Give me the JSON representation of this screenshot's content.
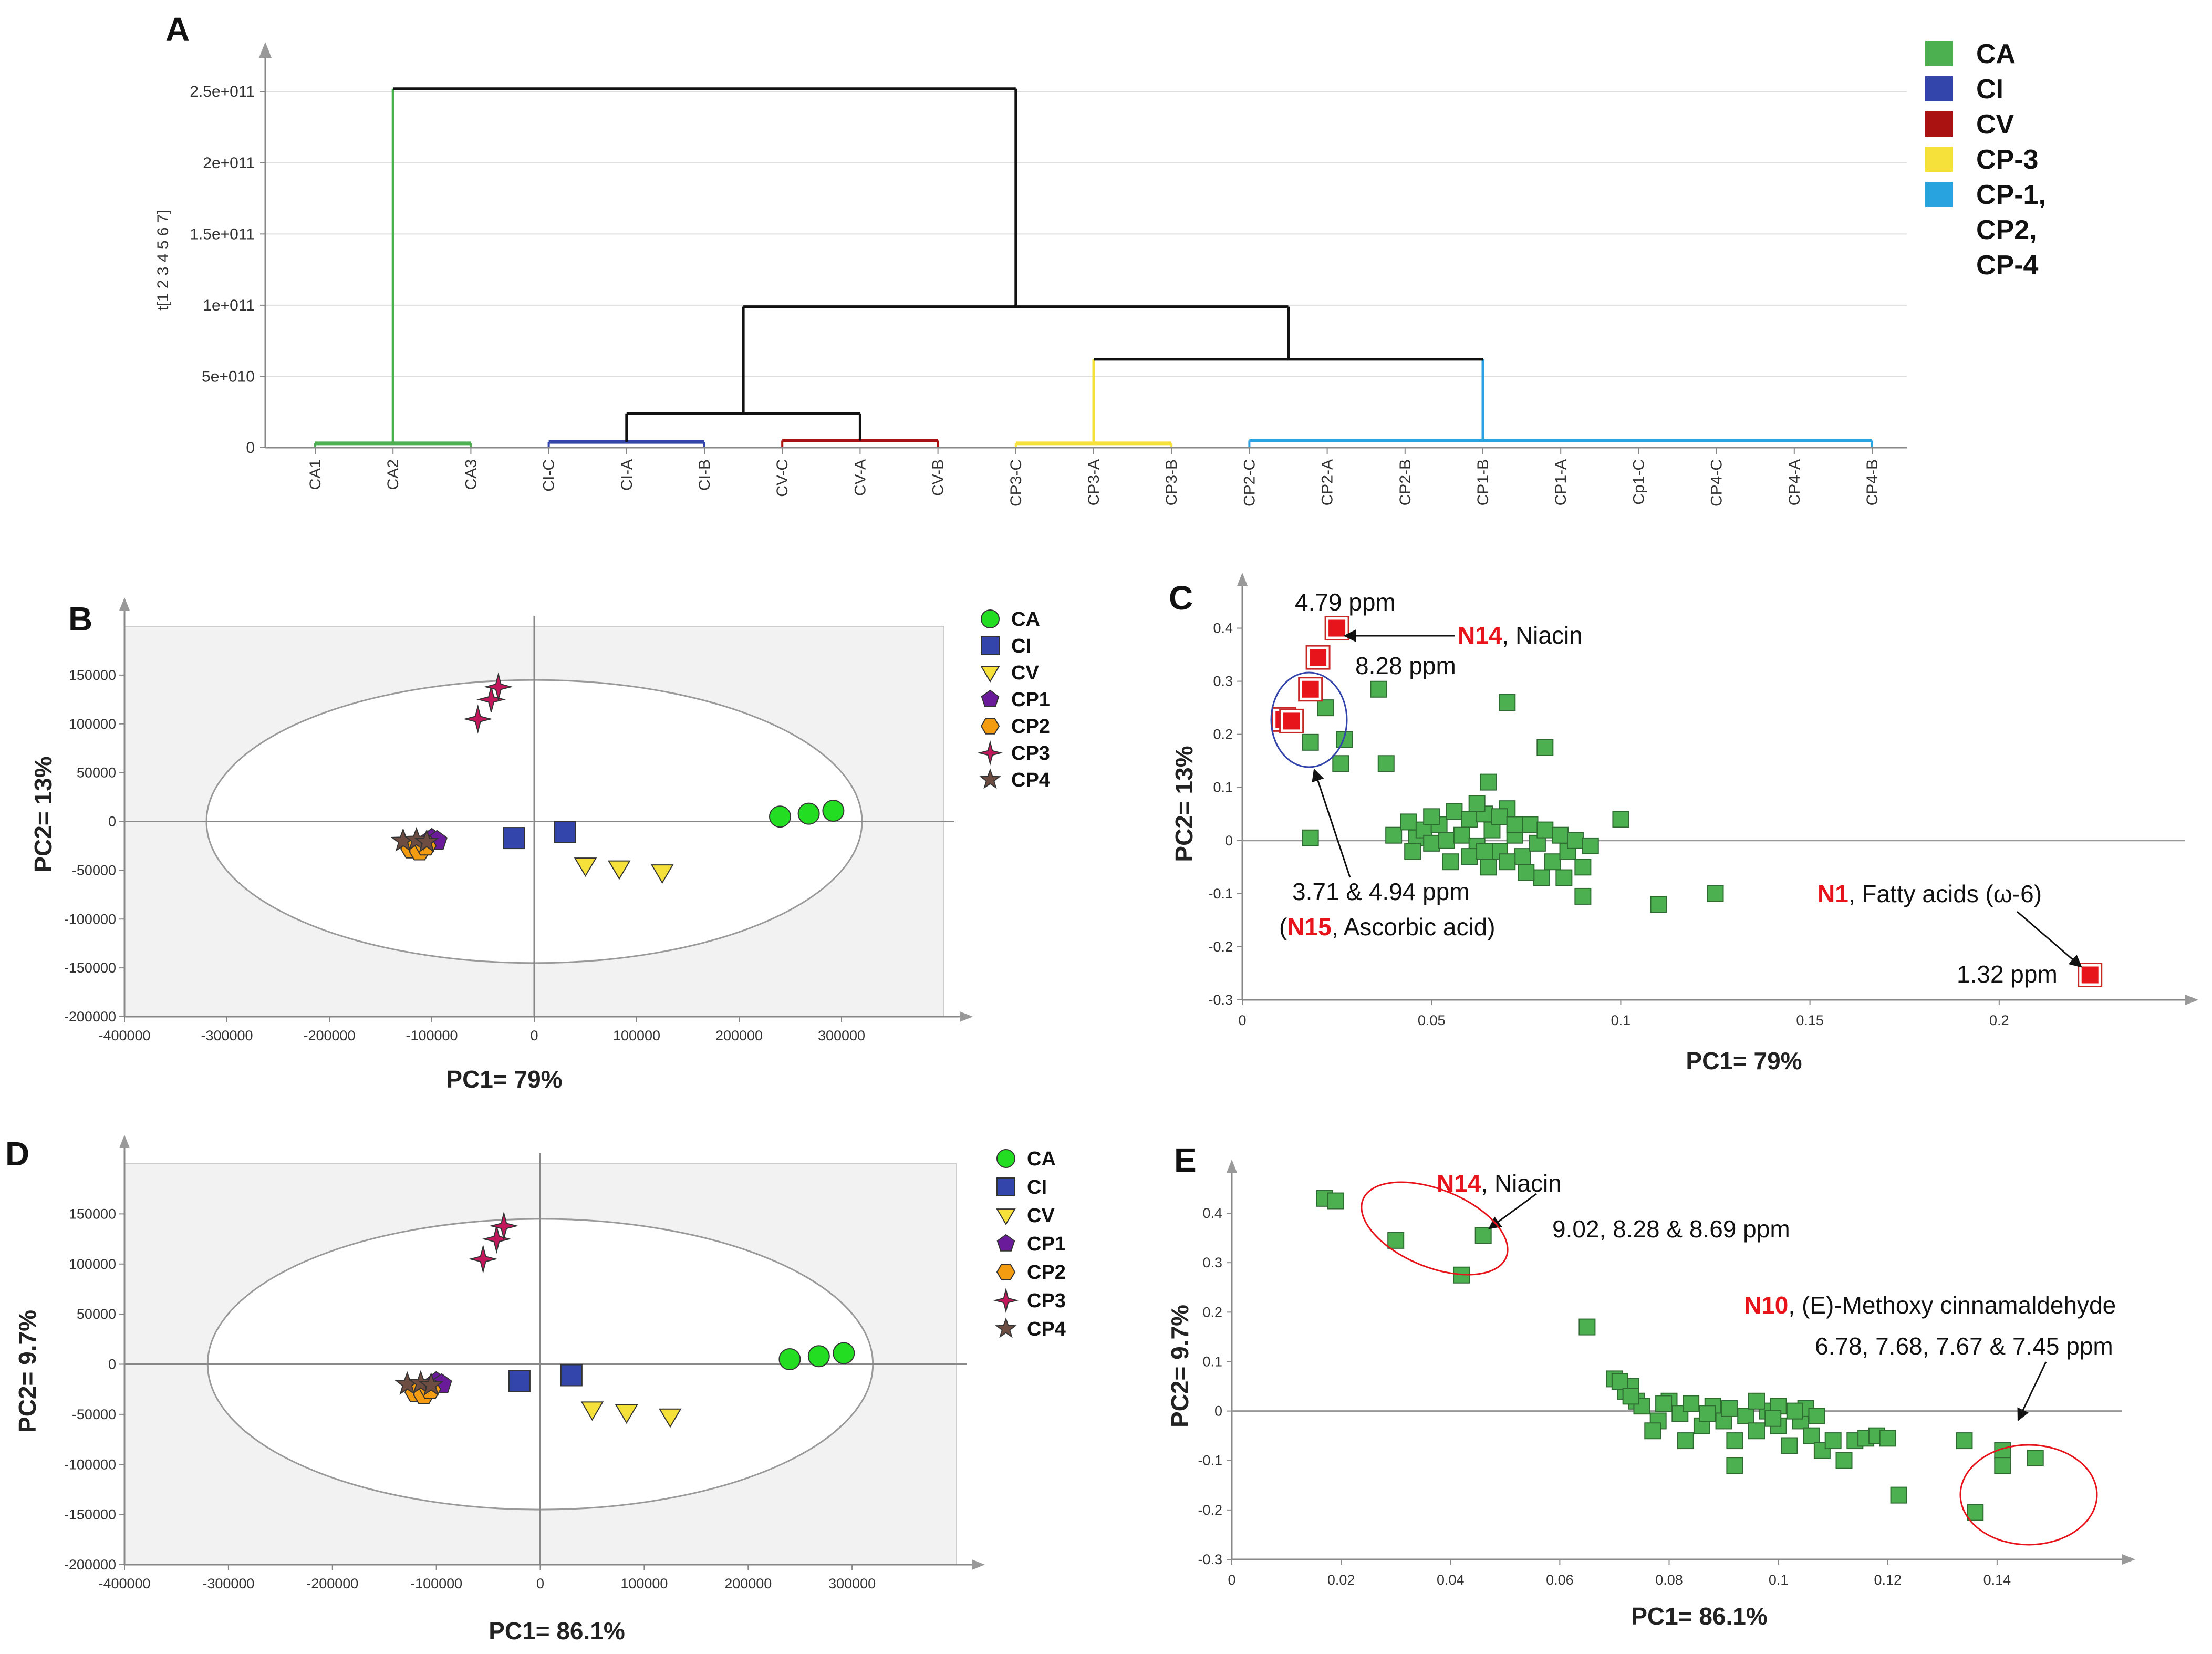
{
  "colors": {
    "green_marker": "#4caf50",
    "green_bright": "#22dd22",
    "blue": "#3344aa",
    "yellow": "#f5e13a",
    "purple": "#6a1b9a",
    "orange": "#f39c12",
    "magenta": "#c2185b",
    "brown": "#6d4c41",
    "red": "#e8141b"
  },
  "chart_data": [
    {
      "panel": "A",
      "type": "dendrogram",
      "ylabel": "t[1 2 3 4 5 6 7]",
      "yticks": [
        "0",
        "5e+010",
        "1e+011",
        "1.5e+011",
        "2e+011",
        "2.5e+011"
      ],
      "yvalues": [
        0,
        50000000000.0,
        100000000000.0,
        150000000000.0,
        200000000000.0,
        250000000000.0
      ],
      "ylim": [
        0,
        270000000000.0
      ],
      "leaves": [
        "CA1",
        "CA2",
        "CA3",
        "CI-C",
        "CI-A",
        "CI-B",
        "CV-C",
        "CV-A",
        "CV-B",
        "CP3-C",
        "CP3-A",
        "CP3-B",
        "CP2-C",
        "CP2-A",
        "CP2-B",
        "CP1-B",
        "CP1-A",
        "Cp1-C",
        "CP4-C",
        "CP4-A",
        "CP4-B"
      ],
      "merges": [
        {
          "left": 0,
          "right": 2,
          "height": 3000000000.0,
          "color": "#4caf50"
        },
        {
          "left": 3,
          "right": 5,
          "height": 4000000000.0,
          "color": "#3344aa"
        },
        {
          "left": 6,
          "right": 8,
          "height": 5000000000.0,
          "color": "#aa1111"
        },
        {
          "left": 9,
          "right": 11,
          "height": 3000000000.0,
          "color": "#f5e13a"
        },
        {
          "left": 12,
          "right": 20,
          "height": 5000000000.0,
          "color": "#29a3e0"
        },
        {
          "left": 1,
          "right": 1,
          "height": 252000000000.0,
          "color": "#4caf50"
        },
        {
          "left": 4,
          "right": 7,
          "height": 24000000000.0,
          "color": "#111111"
        },
        {
          "left": 10,
          "right": 15,
          "height": 62000000000.0,
          "color": "#111111"
        },
        {
          "left": 5.5,
          "right": 12.5,
          "height": 99000000000.0,
          "color": "#111111"
        },
        {
          "left": 1,
          "right": 9,
          "height": 252000000000.0,
          "color": "#111111"
        }
      ],
      "legend": [
        {
          "label": "CA",
          "color": "#4caf50"
        },
        {
          "label": "CI",
          "color": "#3344aa"
        },
        {
          "label": "CV",
          "color": "#aa1111"
        },
        {
          "label": "CP-3",
          "color": "#f5e13a"
        },
        {
          "label": "CP-1,",
          "color": "#29a3e0"
        },
        {
          "label": "CP2,",
          "color": ""
        },
        {
          "label": "CP-4",
          "color": ""
        }
      ]
    },
    {
      "panel": "B",
      "type": "scatter",
      "xlabel": "PC1= 79%",
      "ylabel": "PC2= 13%",
      "xlim": [
        -400000,
        400000
      ],
      "ylim": [
        -200000,
        200000
      ],
      "xticks": [
        -400000,
        -300000,
        -200000,
        -100000,
        0,
        100000,
        200000,
        300000
      ],
      "yticks": [
        -200000,
        -150000,
        -100000,
        -50000,
        0,
        50000,
        100000,
        150000
      ],
      "ellipse": {
        "rx": 320000,
        "ry": 145000
      },
      "series": [
        {
          "name": "CA",
          "marker": "circle",
          "color": "#22dd22",
          "points": [
            [
              240000,
              5000
            ],
            [
              268000,
              8000
            ],
            [
              292000,
              11000
            ]
          ]
        },
        {
          "name": "CI",
          "marker": "square",
          "color": "#3344aa",
          "points": [
            [
              -20000,
              -17000
            ],
            [
              30000,
              -11000
            ]
          ]
        },
        {
          "name": "CV",
          "marker": "tri",
          "color": "#f5e13a",
          "points": [
            [
              50000,
              -45000
            ],
            [
              83000,
              -48000
            ],
            [
              125000,
              -52000
            ]
          ]
        },
        {
          "name": "CP1",
          "marker": "pentagon",
          "color": "#6a1b9a",
          "points": [
            [
              -100000,
              -18000
            ],
            [
              -95000,
              -20000
            ]
          ]
        },
        {
          "name": "CP2",
          "marker": "hexagon",
          "color": "#f39c12",
          "points": [
            [
              -120000,
              -28000
            ],
            [
              -112000,
              -30000
            ],
            [
              -106000,
              -25000
            ]
          ]
        },
        {
          "name": "CP3",
          "marker": "star4",
          "color": "#c2185b",
          "points": [
            [
              -55000,
              105000
            ],
            [
              -42000,
              125000
            ],
            [
              -35000,
              138000
            ]
          ]
        },
        {
          "name": "CP4",
          "marker": "star5",
          "color": "#6d4c41",
          "points": [
            [
              -128000,
              -20000
            ],
            [
              -115000,
              -19000
            ],
            [
              -105000,
              -21000
            ]
          ]
        }
      ]
    },
    {
      "panel": "C",
      "type": "scatter",
      "xlabel": "PC1= 79%",
      "ylabel": "PC2= 13%",
      "xlim": [
        0,
        0.245
      ],
      "ylim": [
        -0.3,
        0.45
      ],
      "xticks": [
        0,
        0.05,
        0.1,
        0.15,
        0.2
      ],
      "xtick_labels": [
        "0",
        "0.05",
        "0.1",
        "0.15",
        "0.2"
      ],
      "yticks": [
        -0.3,
        -0.2,
        -0.1,
        0,
        0.1,
        0.2,
        0.3,
        0.4
      ],
      "ytick_labels": [
        "-0.3",
        "-0.2",
        "-0.1",
        "0",
        "0.1",
        "0.2",
        "0.3",
        "0.4"
      ],
      "highlight_points": [
        [
          0.025,
          0.4
        ],
        [
          0.02,
          0.345
        ],
        [
          0.018,
          0.285
        ],
        [
          0.011,
          0.228
        ],
        [
          0.013,
          0.225
        ],
        [
          0.224,
          -0.253
        ]
      ],
      "green_points": [
        [
          0.018,
          0.005
        ],
        [
          0.018,
          0.185
        ],
        [
          0.022,
          0.25
        ],
        [
          0.027,
          0.19
        ],
        [
          0.026,
          0.145
        ],
        [
          0.036,
          0.285
        ],
        [
          0.038,
          0.145
        ],
        [
          0.07,
          0.26
        ],
        [
          0.08,
          0.175
        ],
        [
          0.065,
          0.11
        ],
        [
          0.1,
          0.04
        ],
        [
          0.11,
          -0.12
        ],
        [
          0.125,
          -0.1
        ],
        [
          0.09,
          -0.105
        ],
        [
          0.079,
          -0.07
        ],
        [
          0.04,
          0.01
        ],
        [
          0.044,
          0.035
        ],
        [
          0.046,
          0.005
        ],
        [
          0.048,
          0.02
        ],
        [
          0.05,
          -0.005
        ],
        [
          0.052,
          0.03
        ],
        [
          0.054,
          0.0
        ],
        [
          0.056,
          0.055
        ],
        [
          0.058,
          0.01
        ],
        [
          0.06,
          0.04
        ],
        [
          0.062,
          -0.01
        ],
        [
          0.064,
          0.05
        ],
        [
          0.066,
          0.02
        ],
        [
          0.068,
          -0.02
        ],
        [
          0.07,
          0.06
        ],
        [
          0.072,
          0.01
        ],
        [
          0.074,
          -0.03
        ],
        [
          0.076,
          0.03
        ],
        [
          0.078,
          -0.005
        ],
        [
          0.08,
          0.02
        ],
        [
          0.082,
          -0.04
        ],
        [
          0.084,
          0.01
        ],
        [
          0.086,
          -0.02
        ],
        [
          0.088,
          0.0
        ],
        [
          0.09,
          -0.05
        ],
        [
          0.092,
          -0.01
        ],
        [
          0.055,
          -0.04
        ],
        [
          0.06,
          -0.03
        ],
        [
          0.065,
          -0.05
        ],
        [
          0.07,
          -0.04
        ],
        [
          0.075,
          -0.06
        ],
        [
          0.085,
          -0.07
        ],
        [
          0.05,
          0.045
        ],
        [
          0.045,
          -0.02
        ],
        [
          0.062,
          0.07
        ],
        [
          0.068,
          0.045
        ],
        [
          0.072,
          0.03
        ],
        [
          0.064,
          -0.02
        ]
      ],
      "annotations": [
        {
          "text": "4.79 ppm"
        },
        {
          "bold_red": "N14",
          "text": ", Niacin"
        },
        {
          "text": "8.28 ppm"
        },
        {
          "text": "3.71 & 4.94 ppm"
        },
        {
          "prefix": "(",
          "bold_red": "N15",
          "text": ", Ascorbic acid)"
        },
        {
          "bold_red": "N1",
          "text": ", Fatty acids (ω-6)"
        },
        {
          "text": "1.32 ppm"
        }
      ]
    },
    {
      "panel": "D",
      "type": "scatter",
      "xlabel": "PC1= 86.1%",
      "ylabel": "PC2= 9.7%",
      "xlim": [
        -400000,
        400000
      ],
      "ylim": [
        -200000,
        200000
      ],
      "xticks": [
        -400000,
        -300000,
        -200000,
        -100000,
        0,
        100000,
        200000,
        300000
      ],
      "yticks": [
        -200000,
        -150000,
        -100000,
        -50000,
        0,
        50000,
        100000,
        150000
      ],
      "ellipse": {
        "rx": 320000,
        "ry": 145000
      },
      "series": [
        {
          "name": "CA",
          "marker": "circle",
          "color": "#22dd22",
          "points": [
            [
              240000,
              5000
            ],
            [
              268000,
              8000
            ],
            [
              292000,
              11000
            ]
          ]
        },
        {
          "name": "CI",
          "marker": "square",
          "color": "#3344aa",
          "points": [
            [
              -20000,
              -17000
            ],
            [
              30000,
              -11000
            ]
          ]
        },
        {
          "name": "CV",
          "marker": "tri",
          "color": "#f5e13a",
          "points": [
            [
              50000,
              -45000
            ],
            [
              83000,
              -48000
            ],
            [
              125000,
              -52000
            ]
          ]
        },
        {
          "name": "CP1",
          "marker": "pentagon",
          "color": "#6a1b9a",
          "points": [
            [
              -100000,
              -18000
            ],
            [
              -95000,
              -20000
            ]
          ]
        },
        {
          "name": "CP2",
          "marker": "hexagon",
          "color": "#f39c12",
          "points": [
            [
              -120000,
              -28000
            ],
            [
              -112000,
              -30000
            ],
            [
              -106000,
              -25000
            ]
          ]
        },
        {
          "name": "CP3",
          "marker": "star4",
          "color": "#c2185b",
          "points": [
            [
              -55000,
              105000
            ],
            [
              -42000,
              125000
            ],
            [
              -35000,
              138000
            ]
          ]
        },
        {
          "name": "CP4",
          "marker": "star5",
          "color": "#6d4c41",
          "points": [
            [
              -128000,
              -20000
            ],
            [
              -115000,
              -19000
            ],
            [
              -105000,
              -21000
            ]
          ]
        }
      ]
    },
    {
      "panel": "E",
      "type": "scatter",
      "xlabel": "PC1= 86.1%",
      "ylabel": "PC2= 9.7%",
      "xlim": [
        0,
        0.16
      ],
      "ylim": [
        -0.3,
        0.45
      ],
      "xticks": [
        0,
        0.02,
        0.04,
        0.06,
        0.08,
        0.1,
        0.12,
        0.14
      ],
      "xtick_labels": [
        "0",
        "0.02",
        "0.04",
        "0.06",
        "0.08",
        "0.1",
        "0.12",
        "0.14"
      ],
      "yticks": [
        -0.3,
        -0.2,
        -0.1,
        0,
        0.1,
        0.2,
        0.3,
        0.4
      ],
      "ytick_labels": [
        "-0.3",
        "-0.2",
        "-0.1",
        "0",
        "0.1",
        "0.2",
        "0.3",
        "0.4"
      ],
      "green_points": [
        [
          0.017,
          0.43
        ],
        [
          0.019,
          0.425
        ],
        [
          0.03,
          0.345
        ],
        [
          0.046,
          0.355
        ],
        [
          0.042,
          0.275
        ],
        [
          0.065,
          0.17
        ],
        [
          0.07,
          0.065
        ],
        [
          0.072,
          0.04
        ],
        [
          0.074,
          0.02
        ],
        [
          0.073,
          0.05
        ],
        [
          0.075,
          0.01
        ],
        [
          0.078,
          -0.02
        ],
        [
          0.08,
          0.02
        ],
        [
          0.082,
          -0.005
        ],
        [
          0.084,
          0.015
        ],
        [
          0.086,
          -0.03
        ],
        [
          0.088,
          0.01
        ],
        [
          0.09,
          -0.02
        ],
        [
          0.092,
          -0.06
        ],
        [
          0.094,
          -0.01
        ],
        [
          0.096,
          -0.04
        ],
        [
          0.098,
          0.0
        ],
        [
          0.1,
          -0.03
        ],
        [
          0.102,
          -0.07
        ],
        [
          0.104,
          -0.02
        ],
        [
          0.106,
          -0.05
        ],
        [
          0.108,
          -0.08
        ],
        [
          0.11,
          -0.06
        ],
        [
          0.112,
          -0.1
        ],
        [
          0.114,
          -0.06
        ],
        [
          0.116,
          -0.055
        ],
        [
          0.118,
          -0.05
        ],
        [
          0.12,
          -0.055
        ],
        [
          0.122,
          -0.17
        ],
        [
          0.092,
          -0.11
        ],
        [
          0.077,
          -0.04
        ],
        [
          0.083,
          -0.06
        ],
        [
          0.1,
          0.01
        ],
        [
          0.105,
          0.005
        ],
        [
          0.096,
          0.02
        ],
        [
          0.134,
          -0.06
        ],
        [
          0.136,
          -0.205
        ],
        [
          0.141,
          -0.08
        ],
        [
          0.141,
          -0.11
        ],
        [
          0.147,
          -0.095
        ],
        [
          0.071,
          0.06
        ],
        [
          0.073,
          0.03
        ],
        [
          0.079,
          0.015
        ],
        [
          0.087,
          -0.005
        ],
        [
          0.091,
          0.005
        ],
        [
          0.099,
          -0.015
        ],
        [
          0.103,
          0.0
        ],
        [
          0.107,
          -0.01
        ]
      ],
      "annotations": [
        {
          "bold_red": "N14",
          "text": ", Niacin"
        },
        {
          "text": "9.02, 8.28 & 8.69 ppm"
        },
        {
          "bold_red": "N10",
          "text": ", (E)-Methoxy  cinnamaldehyde"
        },
        {
          "text": "6.78, 7.68, 7.67 & 7.45 ppm"
        }
      ]
    }
  ],
  "panel_labels": [
    "A",
    "B",
    "C",
    "D",
    "E"
  ]
}
